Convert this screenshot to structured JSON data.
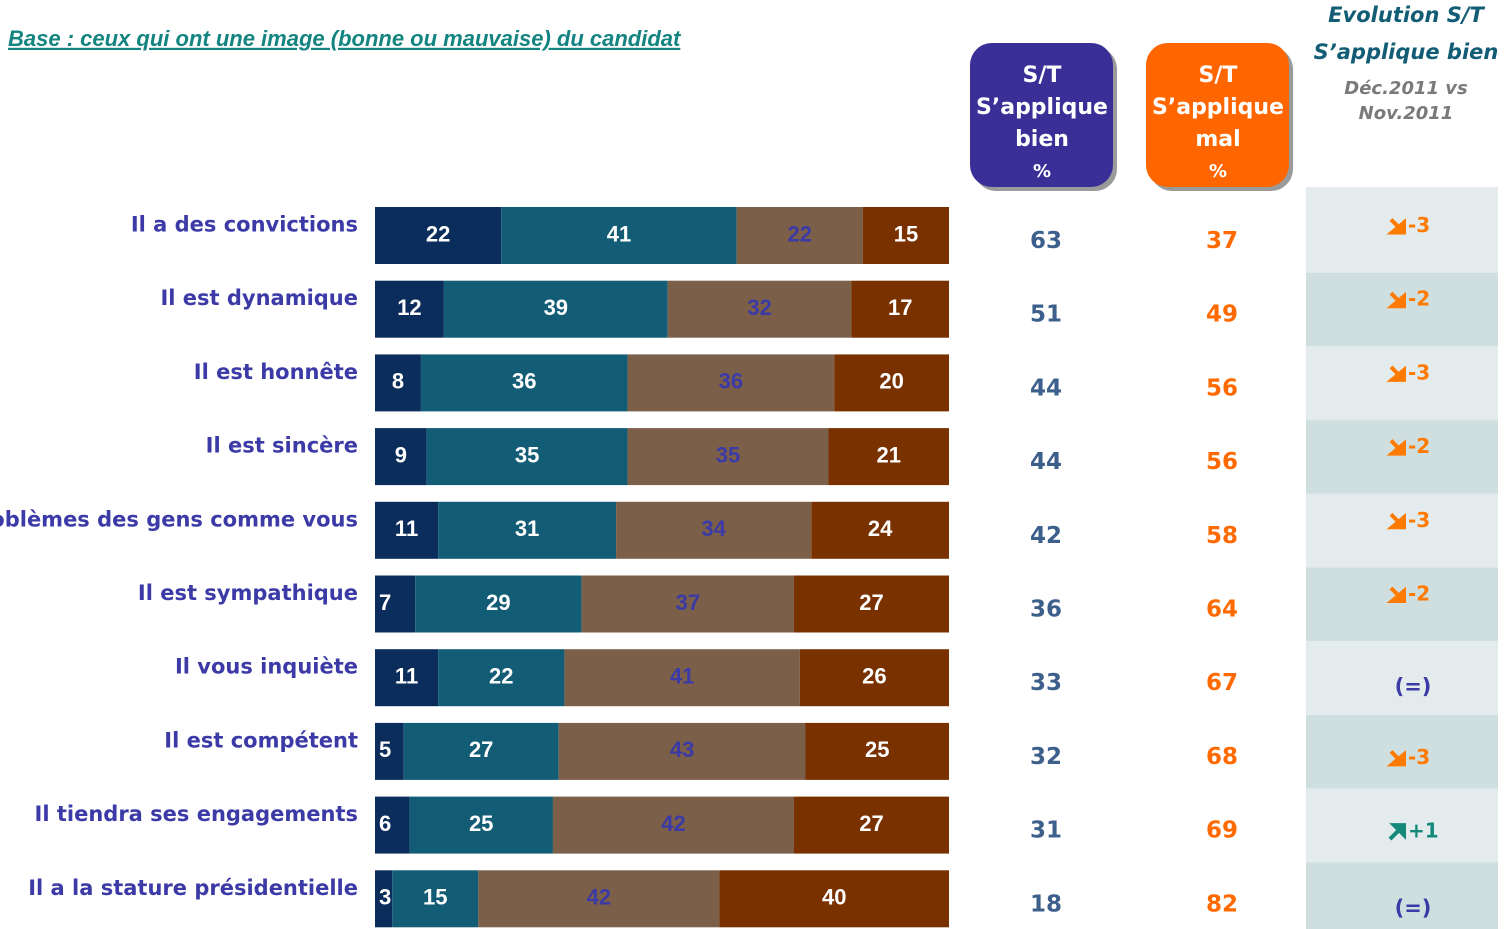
{
  "chart_data": {
    "type": "bar",
    "orientation": "horizontal",
    "stacked": true,
    "subtitle": "Base : ceux qui ont une image (bonne ou mauvaise) du candidat",
    "categories": [
      "Il a des convictions",
      "Il est dynamique",
      "Il est honnête",
      "Il est sincère",
      "oblèmes des gens comme vous",
      "Il est sympathique",
      "Il vous inquiète",
      "Il est compétent",
      "Il tiendra ses engagements",
      "Il a la stature présidentielle"
    ],
    "xlim": [
      0,
      100
    ],
    "series": [
      {
        "color": "#0b2d5c",
        "label_color": "#ffffff",
        "values": [
          22,
          12,
          8,
          9,
          11,
          7,
          11,
          5,
          6,
          3
        ]
      },
      {
        "color": "#135c75",
        "label_color": "#ffffff",
        "values": [
          41,
          39,
          36,
          35,
          31,
          29,
          22,
          27,
          25,
          15
        ]
      },
      {
        "color": "#7b5f48",
        "label_color": "#3b3aa6",
        "values": [
          22,
          32,
          36,
          35,
          34,
          37,
          41,
          43,
          42,
          42
        ]
      },
      {
        "color": "#7a3100",
        "label_color": "#ffffff",
        "values": [
          15,
          17,
          20,
          21,
          24,
          27,
          26,
          25,
          27,
          40
        ]
      }
    ],
    "columns": [
      {
        "header": [
          "S/T",
          "S’applique",
          "bien",
          "%"
        ],
        "color": "#3a2f97",
        "text_color": "#3d5f8c",
        "values": [
          63,
          51,
          44,
          44,
          42,
          36,
          33,
          32,
          31,
          18
        ]
      },
      {
        "header": [
          "S/T",
          "S’applique",
          "mal",
          "%"
        ],
        "color": "#ff6600",
        "text_color": "#ff6a00",
        "values": [
          37,
          49,
          56,
          56,
          58,
          64,
          67,
          68,
          69,
          82
        ]
      }
    ],
    "evolution": {
      "header": [
        "Evolution S/T",
        "S’applique bien",
        "Déc.2011 vs",
        "Nov.2011"
      ],
      "values": [
        "-3",
        "-2",
        "-3",
        "-2",
        "-3",
        "-2",
        "(=)",
        "-3",
        "+1",
        "(=)"
      ]
    }
  }
}
